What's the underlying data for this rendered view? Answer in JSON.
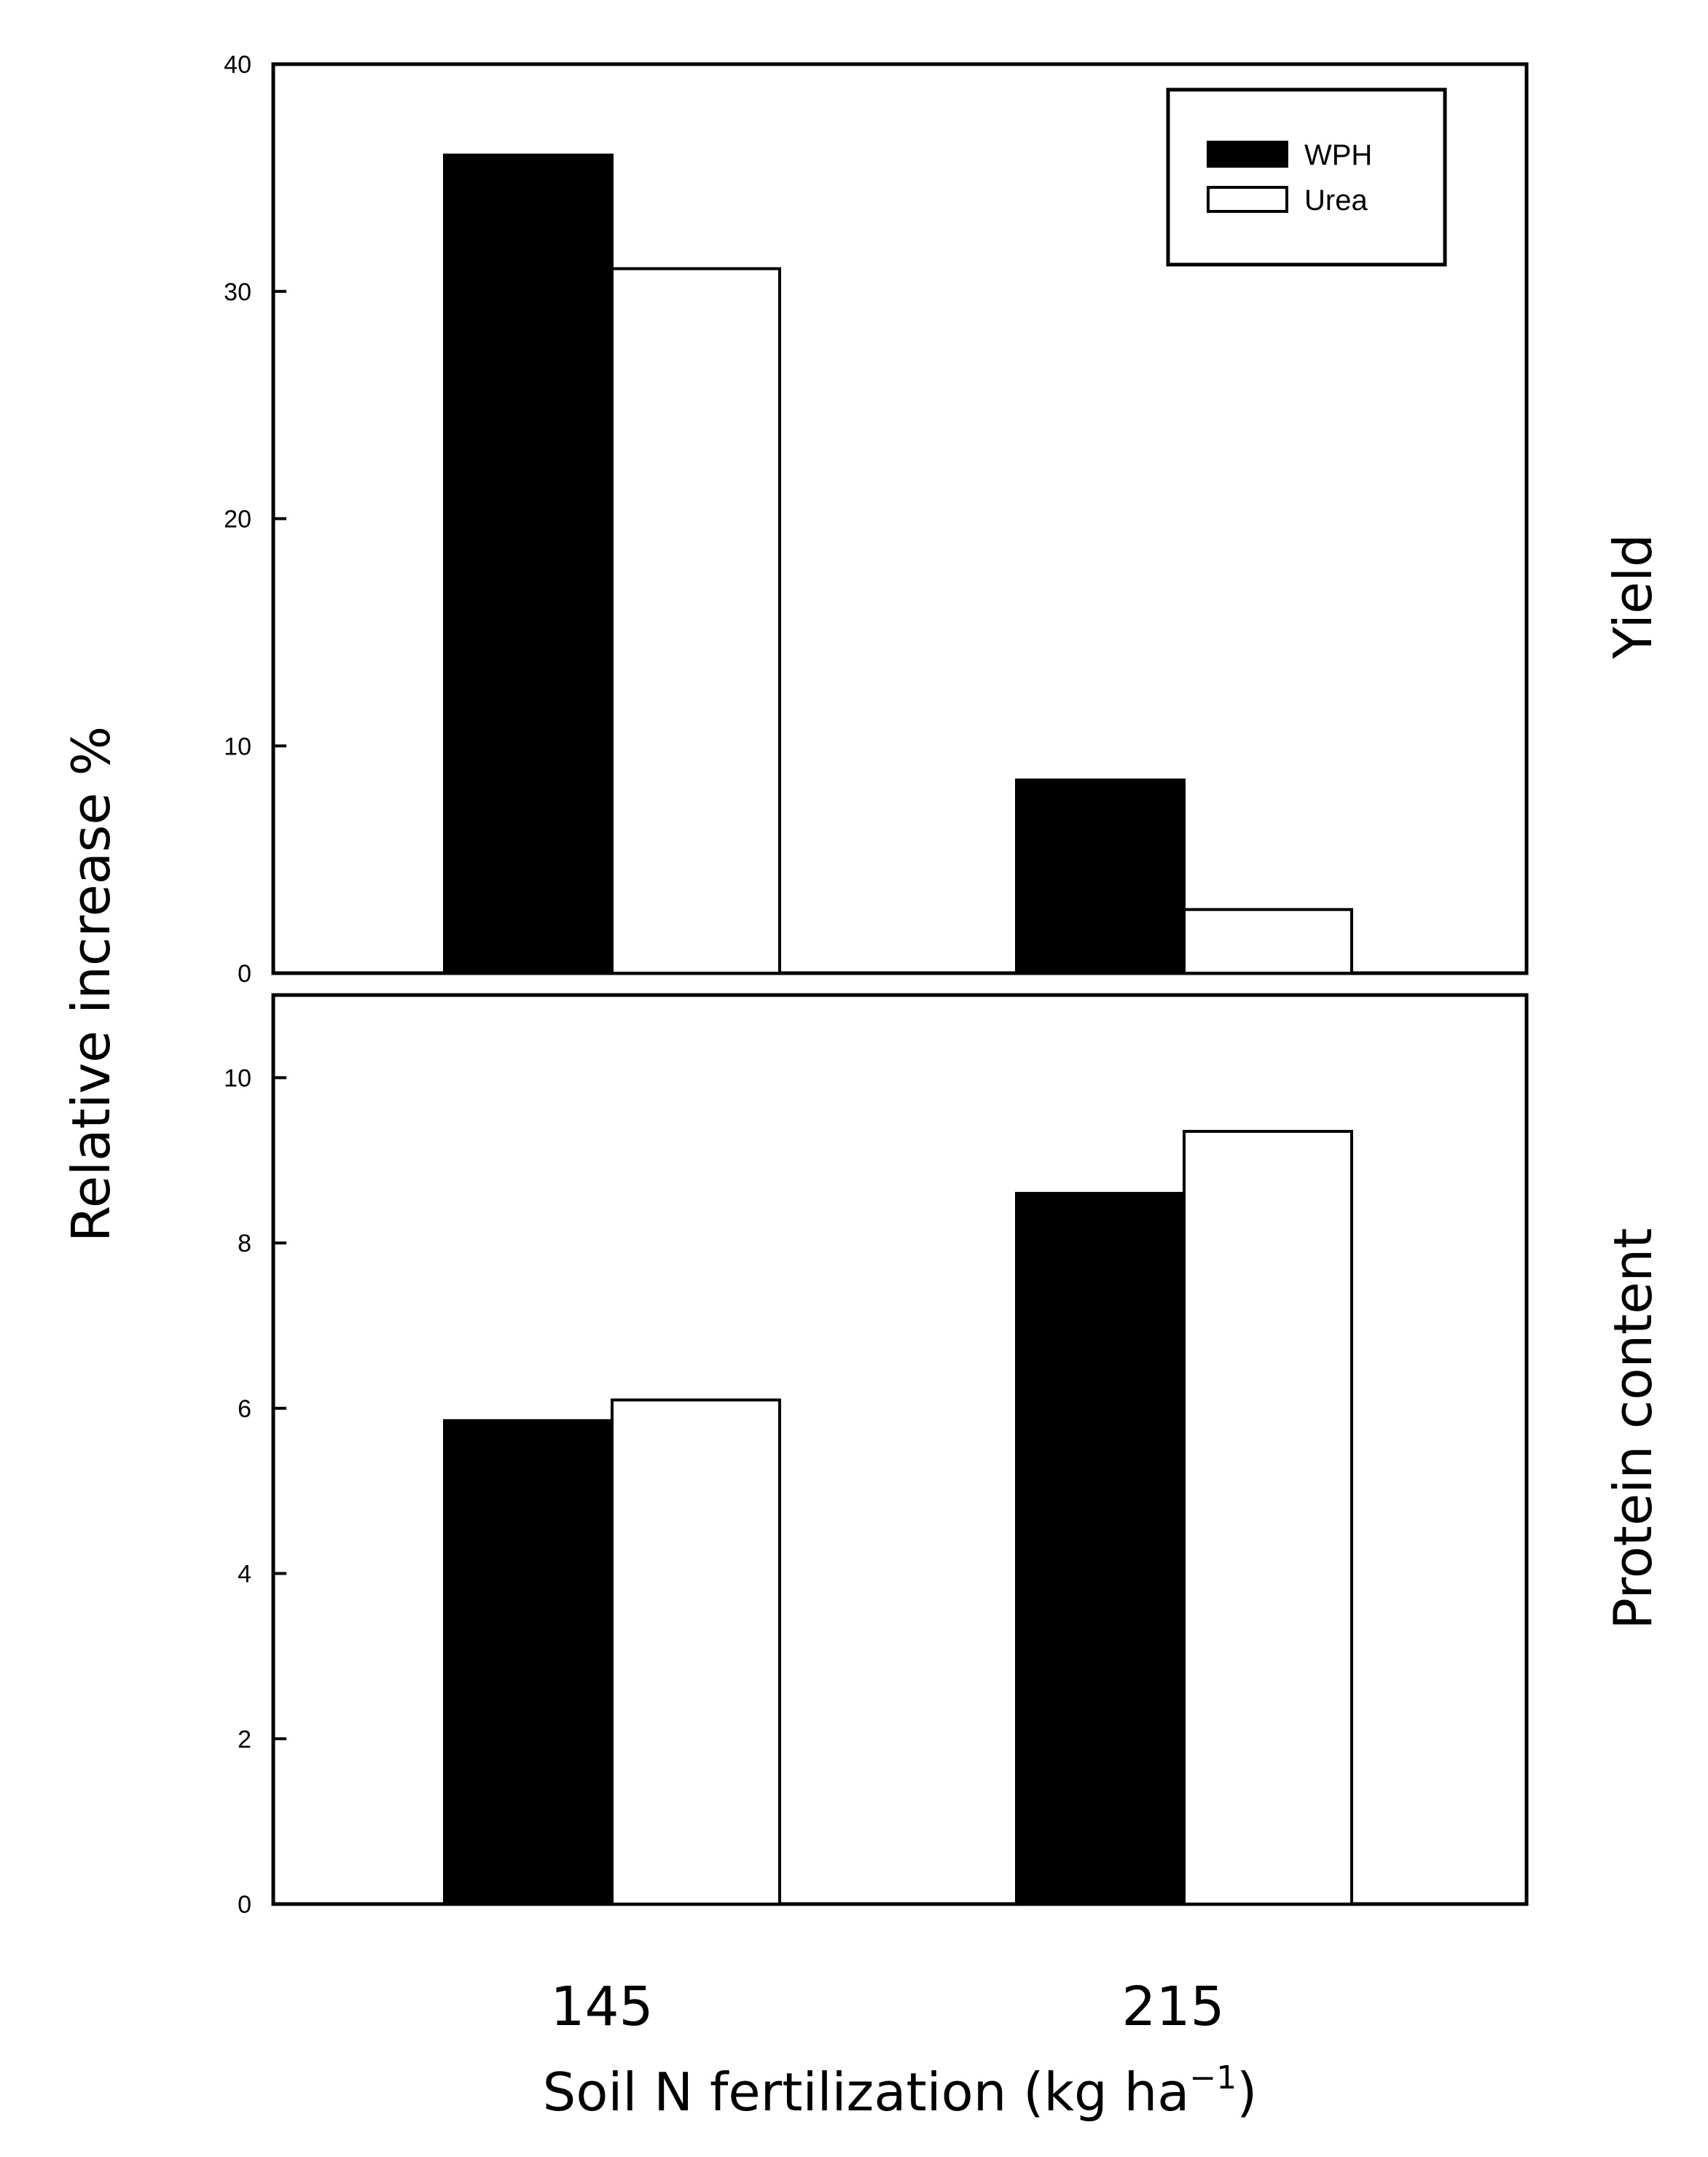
{
  "chart_data": [
    {
      "type": "bar",
      "panel_label": "Yield",
      "categories": [
        "145",
        "215"
      ],
      "series": [
        {
          "name": "WPH",
          "values": [
            36,
            8.5
          ],
          "color": "#000000"
        },
        {
          "name": "Urea",
          "values": [
            31,
            2.8
          ],
          "color": "#ffffff"
        }
      ],
      "ylim": [
        0,
        40
      ],
      "yticks": [
        "0",
        "10",
        "20",
        "30",
        "40"
      ],
      "legend": "top-right",
      "grid": false
    },
    {
      "type": "bar",
      "panel_label": "Protein content",
      "categories": [
        "145",
        "215"
      ],
      "series": [
        {
          "name": "WPH",
          "values": [
            5.85,
            8.6
          ],
          "color": "#000000"
        },
        {
          "name": "Urea",
          "values": [
            6.1,
            9.35
          ],
          "color": "#ffffff"
        }
      ],
      "ylim": [
        0,
        11
      ],
      "yticks": [
        "0",
        "2",
        "4",
        "6",
        "8",
        "10"
      ],
      "grid": false
    }
  ],
  "ylabel": "Relative increase %",
  "xlabel_main": "Soil N fertilization (kg ha",
  "xlabel_sup": "−1",
  "xlabel_end": ")",
  "categories": [
    "145",
    "215"
  ]
}
